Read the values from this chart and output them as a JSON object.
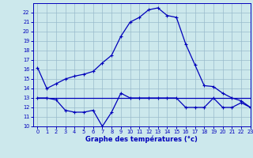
{
  "xlabel": "Graphe des températures (°c)",
  "xlim": [
    -0.5,
    23
  ],
  "ylim": [
    10,
    23
  ],
  "yticks": [
    10,
    11,
    12,
    13,
    14,
    15,
    16,
    17,
    18,
    19,
    20,
    21,
    22
  ],
  "xticks": [
    0,
    1,
    2,
    3,
    4,
    5,
    6,
    7,
    8,
    9,
    10,
    11,
    12,
    13,
    14,
    15,
    16,
    17,
    18,
    19,
    20,
    21,
    22,
    23
  ],
  "bg_color": "#cce8ec",
  "line_color": "#0000bb",
  "grid_color": "#99bbcc",
  "line1_x": [
    0,
    1,
    2,
    3,
    4,
    5,
    6,
    7,
    8,
    9,
    10,
    11,
    12,
    13,
    14,
    15,
    16,
    17,
    18,
    19,
    20,
    21,
    22,
    23
  ],
  "line1_y": [
    16.2,
    14.0,
    14.5,
    15.0,
    15.3,
    15.5,
    15.8,
    16.7,
    17.5,
    19.5,
    21.0,
    21.5,
    22.3,
    22.5,
    21.7,
    21.5,
    18.7,
    16.5,
    14.3,
    14.2,
    13.5,
    13.0,
    12.7,
    12.0
  ],
  "line2_x": [
    0,
    1,
    2,
    3,
    4,
    5,
    6,
    7,
    8,
    9,
    10,
    11,
    12,
    13,
    14,
    15,
    16,
    17,
    18,
    19,
    20,
    21,
    22,
    23
  ],
  "line2_y": [
    13.0,
    13.0,
    12.8,
    11.7,
    11.5,
    11.5,
    11.7,
    10.0,
    11.5,
    13.5,
    13.0,
    13.0,
    13.0,
    13.0,
    13.0,
    13.0,
    12.0,
    12.0,
    12.0,
    13.0,
    12.0,
    12.0,
    12.5,
    12.0
  ],
  "line3_x": [
    0,
    23
  ],
  "line3_y": [
    13.0,
    13.0
  ],
  "marker": "+",
  "markersize": 3,
  "linewidth": 0.9,
  "tick_fontsize": 4.8,
  "xlabel_fontsize": 6.0
}
